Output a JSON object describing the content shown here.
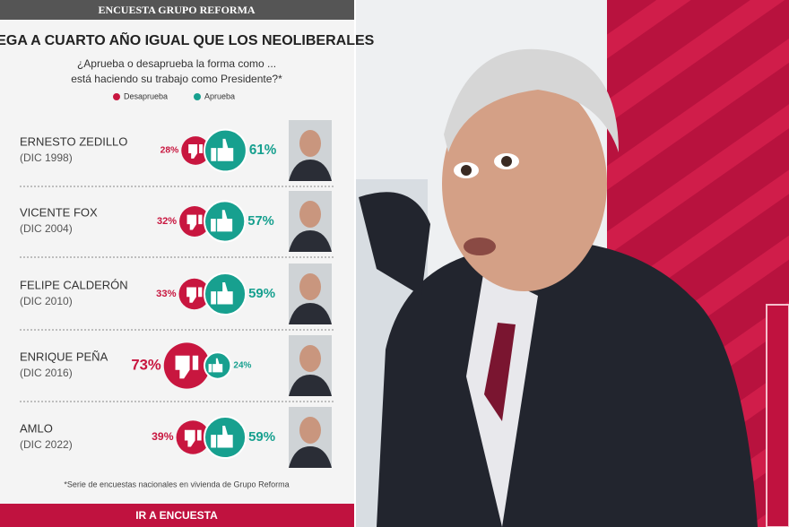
{
  "chart_data": {
    "type": "bubble-pair",
    "header": "ENCUESTA GRUPO REFORMA",
    "title": "LLEGA A CUARTO AÑO IGUAL QUE LOS NEOLIBERALES",
    "subtitle": [
      "¿Aprueba o desaprueba la forma como ...",
      "está haciendo su trabajo como Presidente?*"
    ],
    "categories": [
      "ERNESTO ZEDILLO",
      "VICENTE FOX",
      "FELIPE CALDERÓN",
      "ENRIQUE PEÑA",
      "AMLO"
    ],
    "category_notes": [
      "(DIC 1998)",
      "(DIC 2004)",
      "(DIC 2010)",
      "(DIC 2016)",
      "(DIC 2022)"
    ],
    "series": [
      {
        "name": "Desaprueba",
        "color": "#c8163f",
        "values": [
          28,
          32,
          33,
          73,
          39
        ],
        "value_labels": [
          "28%",
          "32%",
          "33%",
          "73%",
          "39%"
        ]
      },
      {
        "name": "Aprueba",
        "color": "#17a08f",
        "values": [
          61,
          57,
          59,
          24,
          59
        ],
        "value_labels": [
          "61%",
          "57%",
          "59%",
          "24%",
          "59%"
        ]
      }
    ],
    "footnote": "*Serie de encuestas nacionales en vivienda de Grupo Reforma",
    "button": "IR A ENCUESTA"
  }
}
